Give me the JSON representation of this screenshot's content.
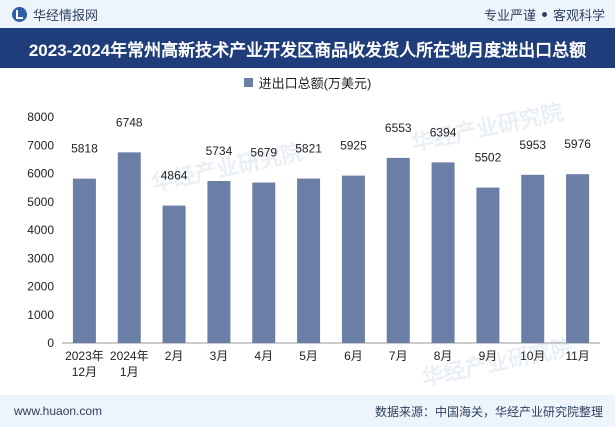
{
  "header": {
    "brand": "华经情报网",
    "tag_left": "专业严谨",
    "tag_right": "客观科学"
  },
  "title": "2023-2024年常州高新技术产业开发区商品收发货人所在地月度进出口总额",
  "legend_label": "进出口总额(万美元)",
  "footer": {
    "url": "www.huaon.com",
    "source": "数据来源：中国海关，华经产业研究院整理"
  },
  "watermark": "华经产业研究院",
  "chart_data": {
    "type": "bar",
    "title": "2023-2024年常州高新技术产业开发区商品收发货人所在地月度进出口总额",
    "categories": [
      "2023年12月",
      "2024年1月",
      "2月",
      "3月",
      "4月",
      "5月",
      "6月",
      "7月",
      "8月",
      "9月",
      "10月",
      "11月"
    ],
    "category_lines": [
      [
        "2023年",
        "12月"
      ],
      [
        "2024年",
        "1月"
      ],
      [
        "2月"
      ],
      [
        "3月"
      ],
      [
        "4月"
      ],
      [
        "5月"
      ],
      [
        "6月"
      ],
      [
        "7月"
      ],
      [
        "8月"
      ],
      [
        "9月"
      ],
      [
        "10月"
      ],
      [
        "11月"
      ]
    ],
    "series": [
      {
        "name": "进出口总额(万美元)",
        "values": [
          5818,
          6748,
          4864,
          5734,
          5679,
          5821,
          5925,
          6553,
          6394,
          5502,
          5953,
          5976
        ]
      }
    ],
    "ylim": [
      0,
      8000
    ],
    "yticks": [
      0,
      1000,
      2000,
      3000,
      4000,
      5000,
      6000,
      7000,
      8000
    ],
    "grid": false,
    "legend_position": "top-center",
    "bar_color": "#6b7ea6"
  }
}
